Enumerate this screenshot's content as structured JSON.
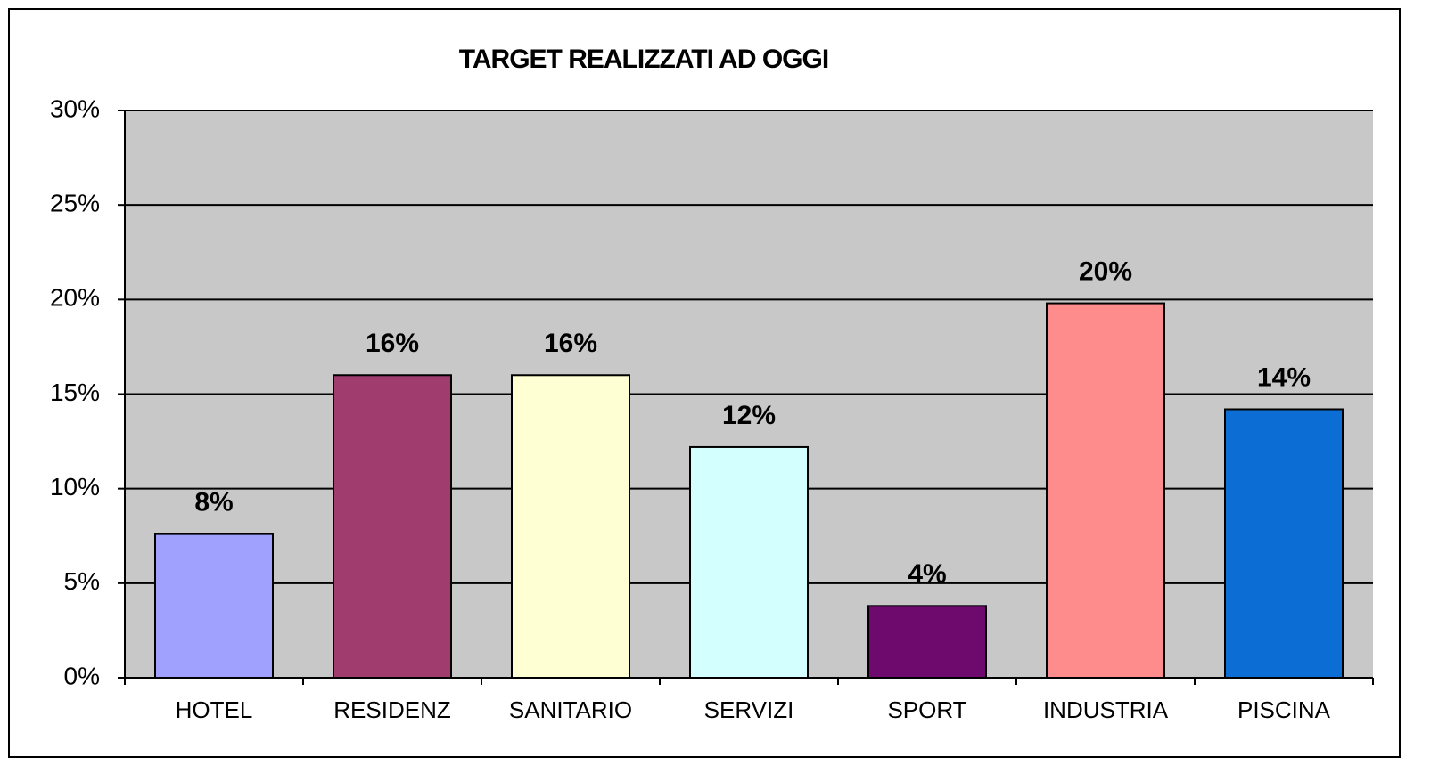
{
  "chart_data": {
    "type": "bar",
    "title": "TARGET REALIZZATI AD OGGI",
    "categories": [
      "HOTEL",
      "RESIDENZ",
      "SANITARIO",
      "SERVIZI",
      "SPORT",
      "INDUSTRIA",
      "PISCINA"
    ],
    "values": [
      7.6,
      16,
      16,
      12.2,
      3.8,
      19.8,
      14.2
    ],
    "value_labels": [
      "8%",
      "16%",
      "16%",
      "12%",
      "4%",
      "20%",
      "14%"
    ],
    "colors": [
      "#a0a0ff",
      "#a03c6e",
      "#ffffd4",
      "#d4ffff",
      "#6e0a6e",
      "#ff8c8c",
      "#0c6ed4"
    ],
    "ylim": [
      0,
      30
    ],
    "yticks": [
      {
        "value": 0,
        "label": "0%"
      },
      {
        "value": 5,
        "label": "5%"
      },
      {
        "value": 10,
        "label": "10%"
      },
      {
        "value": 15,
        "label": "15%"
      },
      {
        "value": 20,
        "label": "20%"
      },
      {
        "value": 25,
        "label": "25%"
      },
      {
        "value": 30,
        "label": "30%"
      }
    ],
    "grid": true
  }
}
